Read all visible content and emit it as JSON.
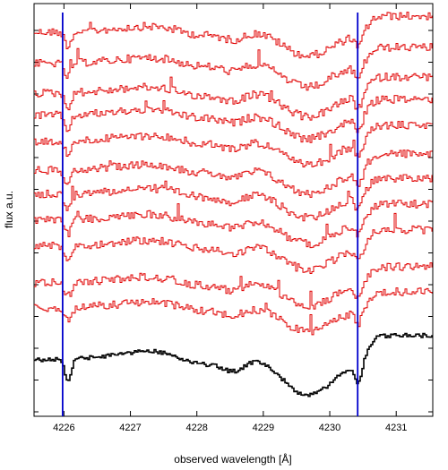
{
  "chart_data": {
    "type": "line",
    "title": "",
    "xlabel": "observed wavelength [Å]",
    "ylabel": "flux a.u.",
    "xlim": [
      4225.55,
      4231.55
    ],
    "x_ticks": [
      4226,
      4227,
      4228,
      4229,
      4230,
      4231
    ],
    "y_ticks_count": 13,
    "grid": false,
    "legend": "none",
    "reference_lines": [
      {
        "x": 4225.98,
        "color": "#0000cc"
      },
      {
        "x": 4230.42,
        "color": "#0000cc"
      }
    ],
    "features": {
      "dip_1_center": 4226.05,
      "broad_trough_center": 4229.65,
      "dip_2_center": 4230.42,
      "dip_3_center": 4228.55
    },
    "series": [
      {
        "color": "#e00000",
        "offset": 10,
        "values_note": ""
      },
      {
        "color": "#e00000",
        "offset": 9
      },
      {
        "color": "#e00000",
        "offset": 8
      },
      {
        "color": "#e00000",
        "offset": 7
      },
      {
        "color": "#e00000",
        "offset": 6
      },
      {
        "color": "#e00000",
        "offset": 5
      },
      {
        "color": "#e00000",
        "offset": 4
      },
      {
        "color": "#e00000",
        "offset": 3
      },
      {
        "color": "#e00000",
        "offset": 2
      },
      {
        "color": "#e00000",
        "offset": 1
      },
      {
        "color": "#e00000",
        "offset": 0
      },
      {
        "color": "#000000",
        "offset": -1.6
      }
    ]
  }
}
